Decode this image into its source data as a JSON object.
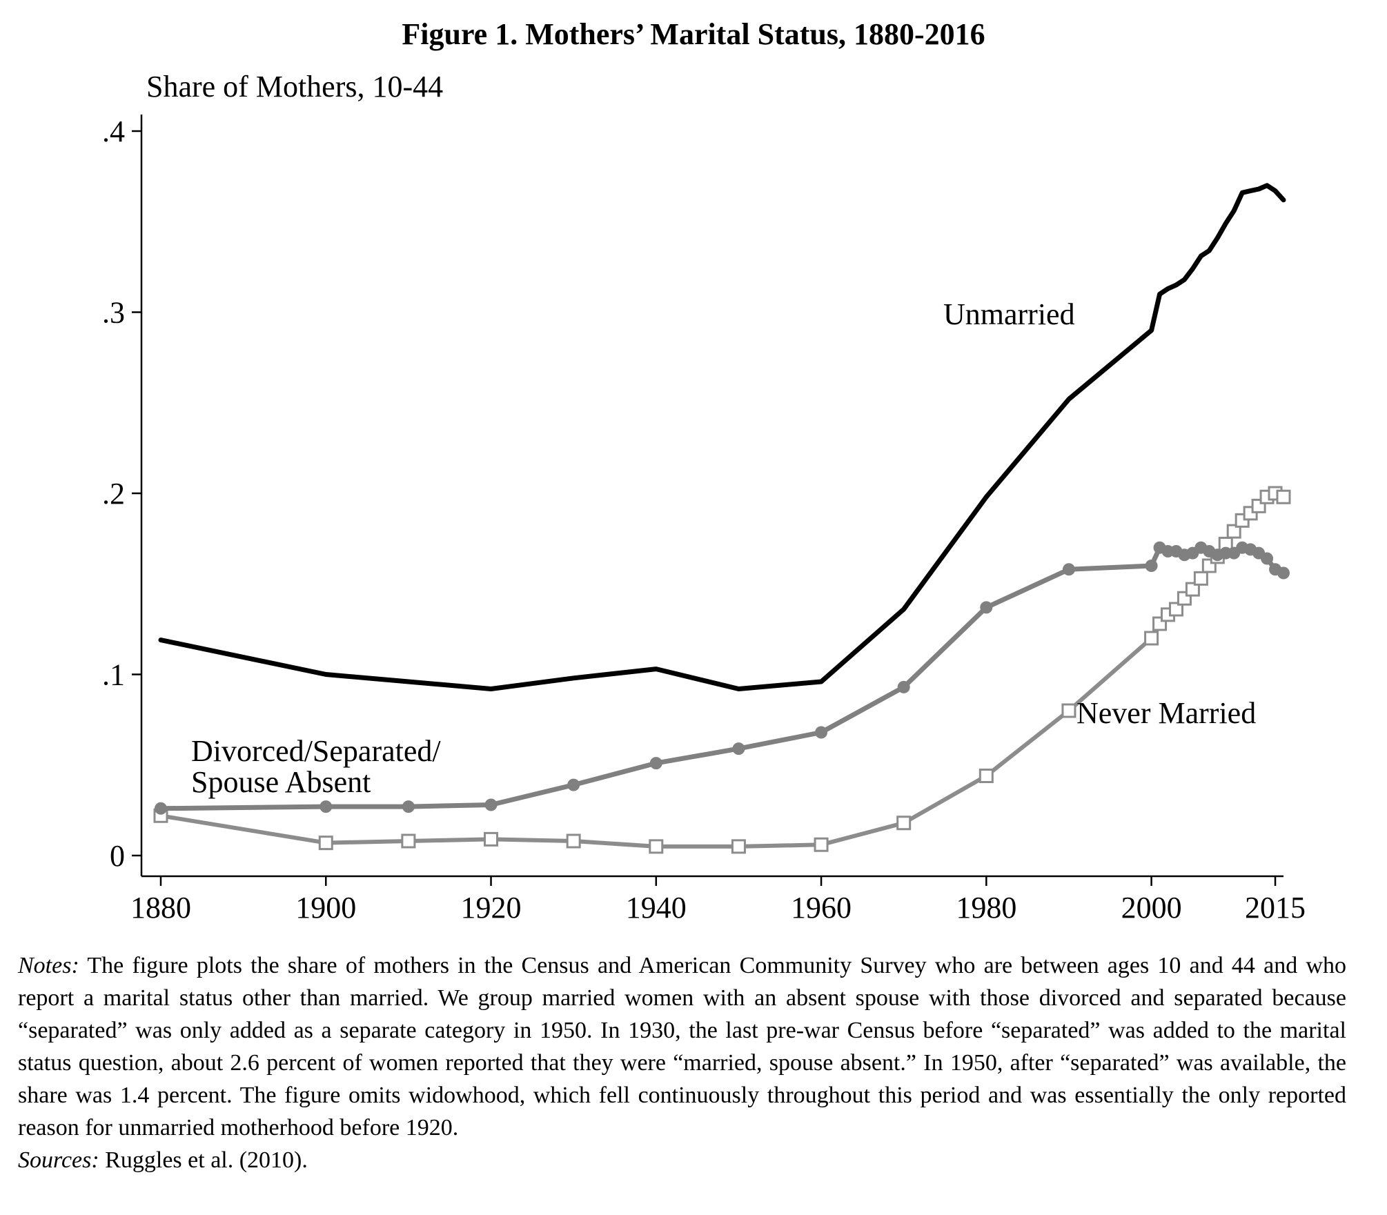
{
  "figure_title": "Figure 1. Mothers’ Marital Status, 1880-2016",
  "notes": {
    "label": "Notes:",
    "text": " The figure plots the share of mothers in the Census and American Community Survey who are between ages 10 and 44 and who report a marital status other than married. We group married women with an absent spouse with those divorced and separated because “separated” was only added as a separate category in 1950. In 1930, the last pre-war Census before “separated” was added to the marital status question, about 2.6 percent of women reported that they were “married, spouse absent.” In 1950, after “separated” was available, the share was 1.4 percent. The figure omits widowhood, which fell continuously throughout this period and was essentially the only reported reason for unmarried motherhood before 1920."
  },
  "sources": {
    "label": "Sources:",
    "text": " Ruggles et al. (2010)."
  },
  "colors": {
    "unmarried": "#000000",
    "divorced": "#808080",
    "never_married": "#8c8c8c",
    "axis": "#000000"
  },
  "chart_data": {
    "type": "line",
    "title": "Figure 1. Mothers’ Marital Status, 1880-2016",
    "ylabel": "Share of Mothers, 10-44",
    "xlabel": "",
    "xlim": [
      1880,
      2016
    ],
    "ylim": [
      0,
      0.4
    ],
    "xticks": [
      1880,
      1900,
      1920,
      1940,
      1960,
      1980,
      2000,
      2015
    ],
    "yticks": [
      0,
      0.1,
      0.2,
      0.3,
      0.4
    ],
    "yticklabels": [
      "0",
      ".1",
      ".2",
      ".3",
      ".4"
    ],
    "grid": false,
    "series": [
      {
        "name": "Unmarried",
        "label": "Unmarried",
        "marker": "none",
        "x": [
          1880,
          1900,
          1910,
          1920,
          1930,
          1940,
          1950,
          1960,
          1970,
          1980,
          1990,
          2000,
          2001,
          2002,
          2003,
          2004,
          2005,
          2006,
          2007,
          2008,
          2009,
          2010,
          2011,
          2012,
          2013,
          2014,
          2015,
          2016
        ],
        "y": [
          0.119,
          0.1,
          0.096,
          0.092,
          0.098,
          0.103,
          0.092,
          0.096,
          0.136,
          0.198,
          0.252,
          0.29,
          0.31,
          0.313,
          0.315,
          0.318,
          0.324,
          0.331,
          0.334,
          0.341,
          0.349,
          0.356,
          0.366,
          0.367,
          0.368,
          0.37,
          0.367,
          0.362
        ]
      },
      {
        "name": "Divorced/Separated/Spouse Absent",
        "label": [
          "Divorced/Separated/",
          "Spouse Absent"
        ],
        "marker": "circle",
        "x": [
          1880,
          1900,
          1910,
          1920,
          1930,
          1940,
          1950,
          1960,
          1970,
          1980,
          1990,
          2000,
          2001,
          2002,
          2003,
          2004,
          2005,
          2006,
          2007,
          2008,
          2009,
          2010,
          2011,
          2012,
          2013,
          2014,
          2015,
          2016
        ],
        "y": [
          0.026,
          0.027,
          0.027,
          0.028,
          0.039,
          0.051,
          0.059,
          0.068,
          0.093,
          0.137,
          0.158,
          0.16,
          0.17,
          0.168,
          0.168,
          0.166,
          0.167,
          0.17,
          0.168,
          0.166,
          0.167,
          0.167,
          0.17,
          0.169,
          0.167,
          0.164,
          0.158,
          0.156
        ]
      },
      {
        "name": "Never Married",
        "label": "Never Married",
        "marker": "square",
        "x": [
          1880,
          1900,
          1910,
          1920,
          1930,
          1940,
          1950,
          1960,
          1970,
          1980,
          1990,
          2000,
          2001,
          2002,
          2003,
          2004,
          2005,
          2006,
          2007,
          2008,
          2009,
          2010,
          2011,
          2012,
          2013,
          2014,
          2015,
          2016
        ],
        "y": [
          0.022,
          0.007,
          0.008,
          0.009,
          0.008,
          0.005,
          0.005,
          0.006,
          0.018,
          0.044,
          0.08,
          0.12,
          0.128,
          0.133,
          0.136,
          0.142,
          0.147,
          0.153,
          0.16,
          0.165,
          0.172,
          0.179,
          0.185,
          0.189,
          0.193,
          0.198,
          0.2,
          0.198
        ]
      }
    ]
  }
}
